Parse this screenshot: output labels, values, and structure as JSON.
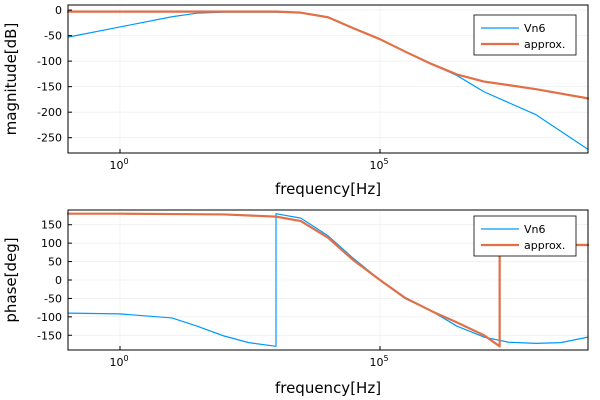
{
  "colors": {
    "series1": "#009AFA",
    "series2": "#E26F46"
  },
  "chart_data": [
    {
      "type": "line",
      "xscale": "log10",
      "xlim": [
        0.1,
        1000000000
      ],
      "ylim": [
        -280,
        10
      ],
      "xticks": [
        {
          "v": 1,
          "base": "10",
          "exp": "0"
        },
        {
          "v": 100000,
          "base": "10",
          "exp": "5"
        }
      ],
      "yticks": [
        0,
        -50,
        -100,
        -150,
        -200,
        -250
      ],
      "xlabel": "frequency[Hz]",
      "ylabel": "magnitude[dB]",
      "grid": true,
      "legend": "top-right",
      "series": [
        {
          "name": "Vn6",
          "color": "#009AFA",
          "width": 1.2,
          "x": [
            0.1,
            1,
            10,
            30,
            100,
            1000,
            3000,
            10000,
            30000,
            100000,
            300000,
            1000000,
            3000000,
            10000000,
            100000000,
            1000000000
          ],
          "y": [
            -53,
            -33,
            -13,
            -6,
            -4,
            -4,
            -5,
            -14,
            -35,
            -57,
            -81,
            -106,
            -128,
            -160,
            -205,
            -273
          ]
        },
        {
          "name": "approx.",
          "color": "#E26F46",
          "width": 2.2,
          "x": [
            0.1,
            1,
            10,
            100,
            1000,
            3000,
            10000,
            30000,
            100000,
            300000,
            1000000,
            3000000,
            10000000,
            30000000,
            100000000,
            1000000000
          ],
          "y": [
            -3,
            -3,
            -3,
            -3,
            -3,
            -5,
            -14,
            -35,
            -57,
            -81,
            -106,
            -126,
            -140,
            -147,
            -155,
            -173
          ]
        }
      ]
    },
    {
      "type": "line",
      "xscale": "log10",
      "xlim": [
        0.1,
        1000000000
      ],
      "ylim": [
        -190,
        190
      ],
      "xticks": [
        {
          "v": 1,
          "base": "10",
          "exp": "0"
        },
        {
          "v": 100000,
          "base": "10",
          "exp": "5"
        }
      ],
      "yticks": [
        150,
        100,
        50,
        0,
        -50,
        -100,
        -150
      ],
      "xlabel": "frequency[Hz]",
      "ylabel": "phase[deg]",
      "grid": true,
      "legend": "top-right",
      "series": [
        {
          "name": "Vn6",
          "color": "#009AFA",
          "width": 1.2,
          "x": [
            0.1,
            1,
            10,
            30,
            100,
            300,
            1000,
            1000.01,
            3000,
            10000,
            30000,
            100000,
            300000,
            1000000,
            3000000,
            10000000,
            30000000,
            100000000,
            300000000,
            1000000000
          ],
          "y": [
            -90,
            -92,
            -103,
            -125,
            -152,
            -170,
            -180,
            180,
            168,
            120,
            60,
            0,
            -50,
            -85,
            -125,
            -155,
            -169,
            -172,
            -170,
            -155
          ]
        },
        {
          "name": "approx.",
          "color": "#E26F46",
          "width": 2.2,
          "x": [
            0.1,
            1,
            10,
            100,
            1000,
            3000,
            10000,
            30000,
            100000,
            300000,
            1000000,
            3000000,
            10000000,
            20000000,
            20000000.1,
            1000000000
          ],
          "y": [
            180,
            180,
            179,
            178,
            172,
            160,
            115,
            55,
            0,
            -48,
            -85,
            -115,
            -150,
            -180,
            95,
            95
          ]
        }
      ]
    }
  ]
}
